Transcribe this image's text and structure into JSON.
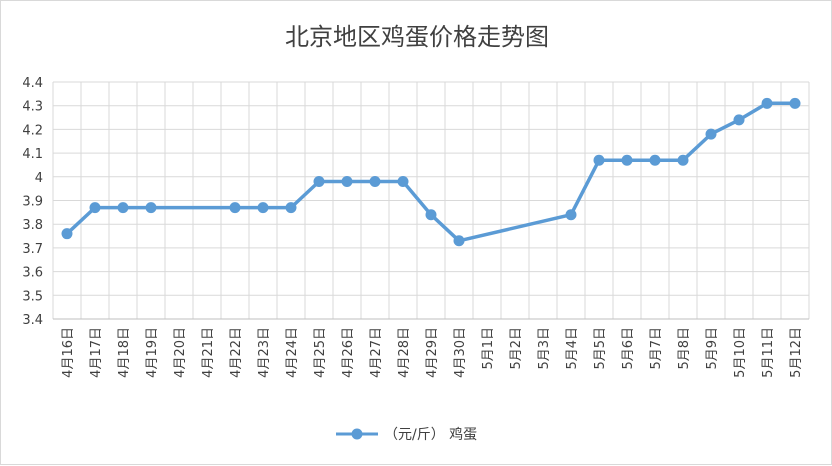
{
  "chart_data": {
    "type": "line",
    "title": "北京地区鸡蛋价格走势图",
    "xlabel": "",
    "ylabel": "",
    "categories": [
      "4月16日",
      "4月17日",
      "4月18日",
      "4月19日",
      "4月20日",
      "4月21日",
      "4月22日",
      "4月23日",
      "4月24日",
      "4月25日",
      "4月26日",
      "4月27日",
      "4月28日",
      "4月29日",
      "4月30日",
      "5月1日",
      "5月2日",
      "5月3日",
      "5月4日",
      "5月5日",
      "5月6日",
      "5月7日",
      "5月8日",
      "5月9日",
      "5月10日",
      "5月11日",
      "5月12日"
    ],
    "series": [
      {
        "name": "（元/斤） 鸡蛋",
        "color": "#5b9bd5",
        "values": [
          3.76,
          3.87,
          3.87,
          3.87,
          null,
          null,
          3.87,
          3.87,
          3.87,
          3.98,
          3.98,
          3.98,
          3.98,
          3.84,
          3.73,
          null,
          null,
          null,
          3.84,
          4.07,
          4.07,
          4.07,
          4.07,
          4.18,
          4.24,
          4.31,
          4.31
        ]
      }
    ],
    "y_ticks": [
      "3.4",
      "3.5",
      "3.6",
      "3.7",
      "3.8",
      "3.9",
      "4",
      "4.1",
      "4.2",
      "4.3",
      "4.4"
    ],
    "ylim": [
      3.4,
      4.4
    ],
    "grid": true,
    "legend_position": "bottom"
  }
}
